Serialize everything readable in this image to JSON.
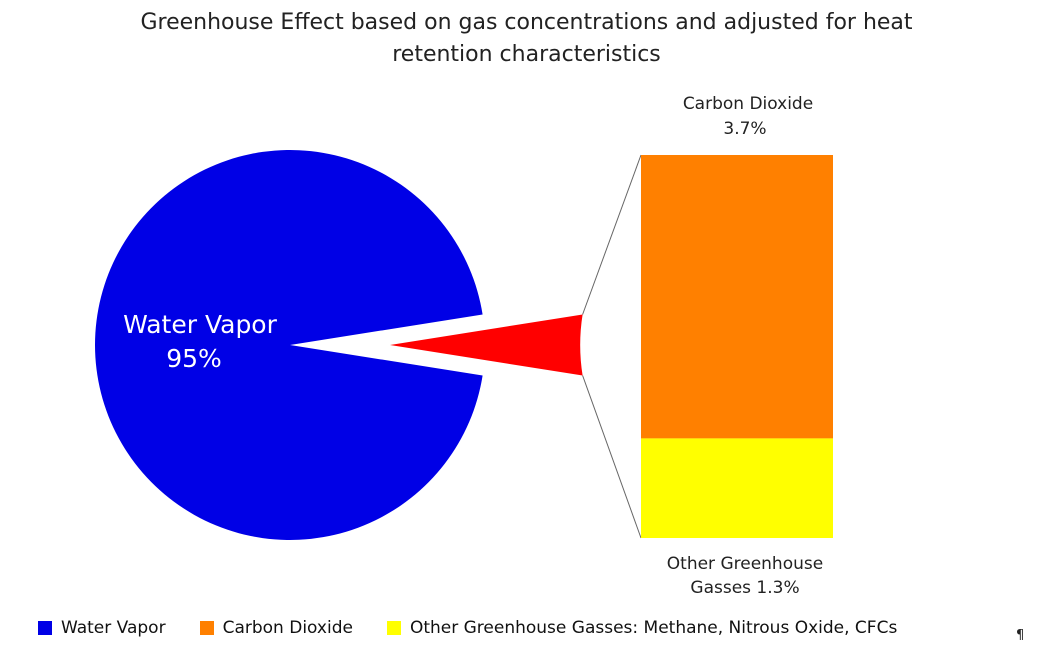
{
  "chart_data": {
    "type": "pie",
    "title_line1": "Greenhouse Effect based on gas concentrations and adjusted for heat",
    "title_line2": "retention characteristics",
    "slices": [
      {
        "label": "Water Vapor",
        "value": 95,
        "value_label": "95%",
        "color": "#0000e6"
      },
      {
        "label": "Carbon Dioxide",
        "value": 3.7,
        "value_label": "3.7%",
        "color": "#ff8000"
      },
      {
        "label": "Other Greenhouse Gasses",
        "value": 1.3,
        "value_label": "1.3%",
        "color": "#ffff00"
      }
    ],
    "exploded_wedge_color": "#ff0000",
    "bar_labels": {
      "top_line1": "Carbon Dioxide",
      "top_line2": "3.7%",
      "bottom_line1": "Other Greenhouse",
      "bottom_line2": "Gasses  1.3%"
    },
    "pie_label_line1": "Water Vapor",
    "pie_label_line2": "95%",
    "legend": [
      {
        "label": "Water Vapor",
        "color": "#0000e6"
      },
      {
        "label": "Carbon Dioxide",
        "color": "#ff8000"
      },
      {
        "label": "Other Greenhouse Gasses: Methane, Nitrous Oxide, CFCs",
        "color": "#ffff00"
      }
    ],
    "legend_position": "bottom"
  },
  "paragraph_mark": "¶"
}
